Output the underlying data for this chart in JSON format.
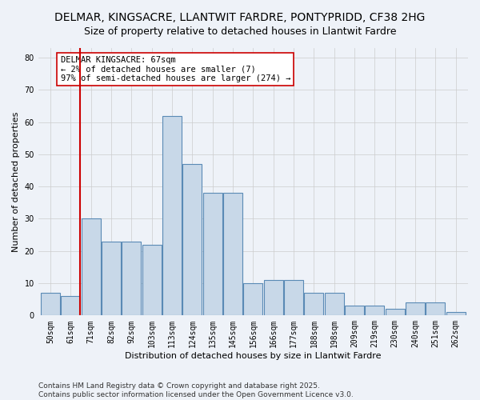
{
  "title_line1": "DELMAR, KINGSACRE, LLANTWIT FARDRE, PONTYPRIDD, CF38 2HG",
  "title_line2": "Size of property relative to detached houses in Llantwit Fardre",
  "xlabel": "Distribution of detached houses by size in Llantwit Fardre",
  "ylabel": "Number of detached properties",
  "categories": [
    "50sqm",
    "61sqm",
    "71sqm",
    "82sqm",
    "92sqm",
    "103sqm",
    "113sqm",
    "124sqm",
    "135sqm",
    "145sqm",
    "156sqm",
    "166sqm",
    "177sqm",
    "188sqm",
    "198sqm",
    "209sqm",
    "219sqm",
    "230sqm",
    "240sqm",
    "251sqm",
    "262sqm"
  ],
  "values": [
    7,
    6,
    30,
    23,
    23,
    22,
    62,
    47,
    38,
    38,
    10,
    11,
    11,
    7,
    7,
    3,
    3,
    2,
    4,
    4,
    1
  ],
  "bar_color": "#c8d8e8",
  "bar_edge_color": "#5a8ab5",
  "bar_edge_width": 0.8,
  "grid_color": "#cccccc",
  "background_color": "#eef2f8",
  "vline_color": "#cc0000",
  "annotation_box_text": "DELMAR KINGSACRE: 67sqm\n← 2% of detached houses are smaller (7)\n97% of semi-detached houses are larger (274) →",
  "ylim": [
    0,
    83
  ],
  "yticks": [
    0,
    10,
    20,
    30,
    40,
    50,
    60,
    70,
    80
  ],
  "footer_text": "Contains HM Land Registry data © Crown copyright and database right 2025.\nContains public sector information licensed under the Open Government Licence v3.0.",
  "title_fontsize": 10,
  "subtitle_fontsize": 9,
  "axis_label_fontsize": 8,
  "tick_fontsize": 7,
  "annotation_fontsize": 7.5,
  "footer_fontsize": 6.5
}
